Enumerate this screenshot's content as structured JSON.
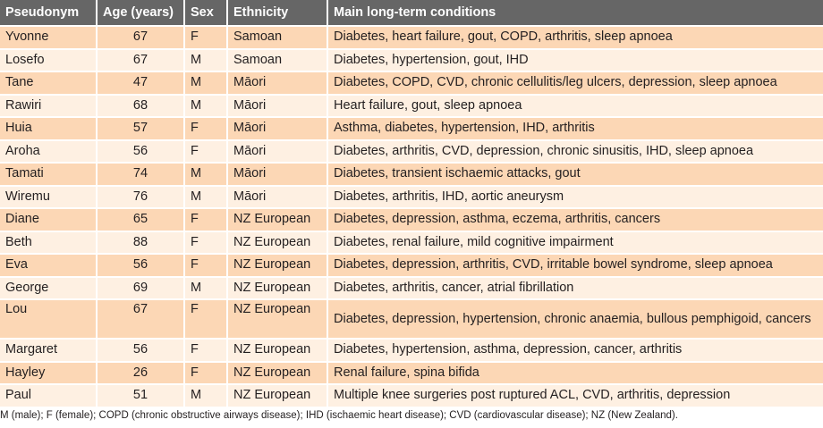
{
  "table": {
    "headers": [
      "Pseudonym",
      "Age (years)",
      "Sex",
      "Ethnicity",
      "Main long-term conditions"
    ],
    "rows": [
      [
        "Yvonne",
        "67",
        "F",
        "Samoan",
        "Diabetes, heart failure, gout, COPD, arthritis, sleep apnoea"
      ],
      [
        "Losefo",
        "67",
        "M",
        "Samoan",
        "Diabetes, hypertension, gout, IHD"
      ],
      [
        "Tane",
        "47",
        "M",
        "Māori",
        "Diabetes, COPD, CVD, chronic cellulitis/leg ulcers, depression, sleep apnoea"
      ],
      [
        "Rawiri",
        "68",
        "M",
        "Māori",
        "Heart failure, gout, sleep apnoea"
      ],
      [
        "Huia",
        "57",
        "F",
        "Māori",
        "Asthma, diabetes, hypertension, IHD, arthritis"
      ],
      [
        "Aroha",
        "56",
        "F",
        "Māori",
        "Diabetes, arthritis, CVD, depression, chronic sinusitis, IHD, sleep apnoea"
      ],
      [
        "Tamati",
        "74",
        "M",
        "Māori",
        "Diabetes, transient ischaemic attacks, gout"
      ],
      [
        "Wiremu",
        "76",
        "M",
        "Māori",
        "Diabetes, arthritis, IHD, aortic aneurysm"
      ],
      [
        "Diane",
        "65",
        "F",
        "NZ European",
        "Diabetes, depression, asthma, eczema, arthritis, cancers"
      ],
      [
        "Beth",
        "88",
        "F",
        "NZ European",
        "Diabetes, renal failure, mild cognitive impairment"
      ],
      [
        "Eva",
        "56",
        "F",
        "NZ European",
        "Diabetes, depression, arthritis, CVD, irritable bowel syndrome, sleep apnoea"
      ],
      [
        "George",
        "69",
        "M",
        "NZ European",
        "Diabetes, arthritis, cancer, atrial fibrillation"
      ],
      [
        "Lou",
        "67",
        "F",
        "NZ European",
        "Diabetes, depression, hypertension, chronic anaemia, bullous pemphigoid, cancers"
      ],
      [
        "Margaret",
        "56",
        "F",
        "NZ European",
        "Diabetes, hypertension, asthma, depression, cancer, arthritis"
      ],
      [
        "Hayley",
        "26",
        "F",
        "NZ European",
        "Renal failure, spina bifida"
      ],
      [
        "Paul",
        "51",
        "M",
        "NZ European",
        "Multiple knee surgeries post ruptured ACL, CVD, arthritis, depression"
      ]
    ]
  },
  "footnote": "M (male); F (female); COPD (chronic obstructive airways disease); IHD (ischaemic heart disease); CVD (cardiovascular disease); NZ (New Zealand).",
  "colors": {
    "header_bg": "#666666",
    "row_odd": "#fcd7b5",
    "row_even": "#fef0e2"
  }
}
